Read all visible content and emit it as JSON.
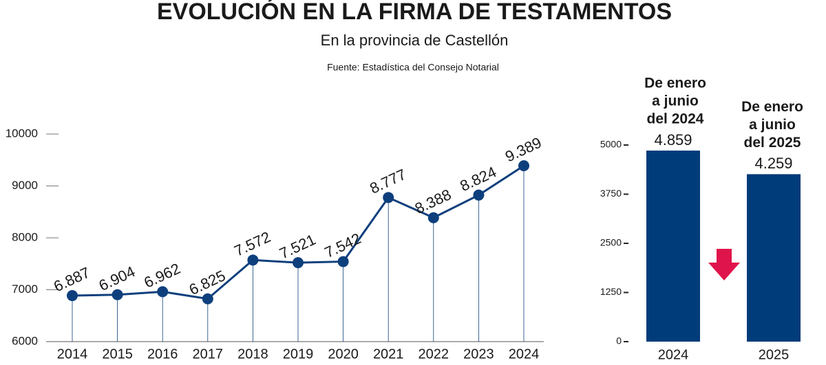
{
  "header": {
    "title": "EVOLUCIÓN EN LA FIRMA DE TESTAMENTOS",
    "subtitle": "En la provincia de Castellón",
    "source": "Fuente:  Estadística del Consejo Notarial"
  },
  "chart_data": [
    {
      "type": "line",
      "categories": [
        "2014",
        "2015",
        "2016",
        "2017",
        "2018",
        "2019",
        "2020",
        "2021",
        "2022",
        "2023",
        "2024"
      ],
      "values": [
        6887,
        6904,
        6962,
        6825,
        7572,
        7521,
        7542,
        8777,
        8388,
        8824,
        9389
      ],
      "value_labels": [
        "6.887",
        "6.904",
        "6.962",
        "6.825",
        "7.572",
        "7.521",
        "7.542",
        "8.777",
        "8.388",
        "8.824",
        "9.389"
      ],
      "color": "#0e3f7d",
      "ylim": [
        6000,
        10000
      ],
      "yticks": [
        6000,
        7000,
        8000,
        9000,
        10000
      ]
    },
    {
      "type": "bar",
      "categories": [
        "2024",
        "2025"
      ],
      "values": [
        4859,
        4259
      ],
      "value_labels": [
        "4.859",
        "4.259"
      ],
      "annotations": [
        [
          "De enero",
          "a junio",
          "del 2024"
        ],
        [
          "De enero",
          "a junio",
          "del 2025"
        ]
      ],
      "color": "#003b7a",
      "ylim": [
        0,
        5000
      ],
      "yticks": [
        0,
        1250,
        2500,
        3750,
        5000
      ]
    }
  ]
}
